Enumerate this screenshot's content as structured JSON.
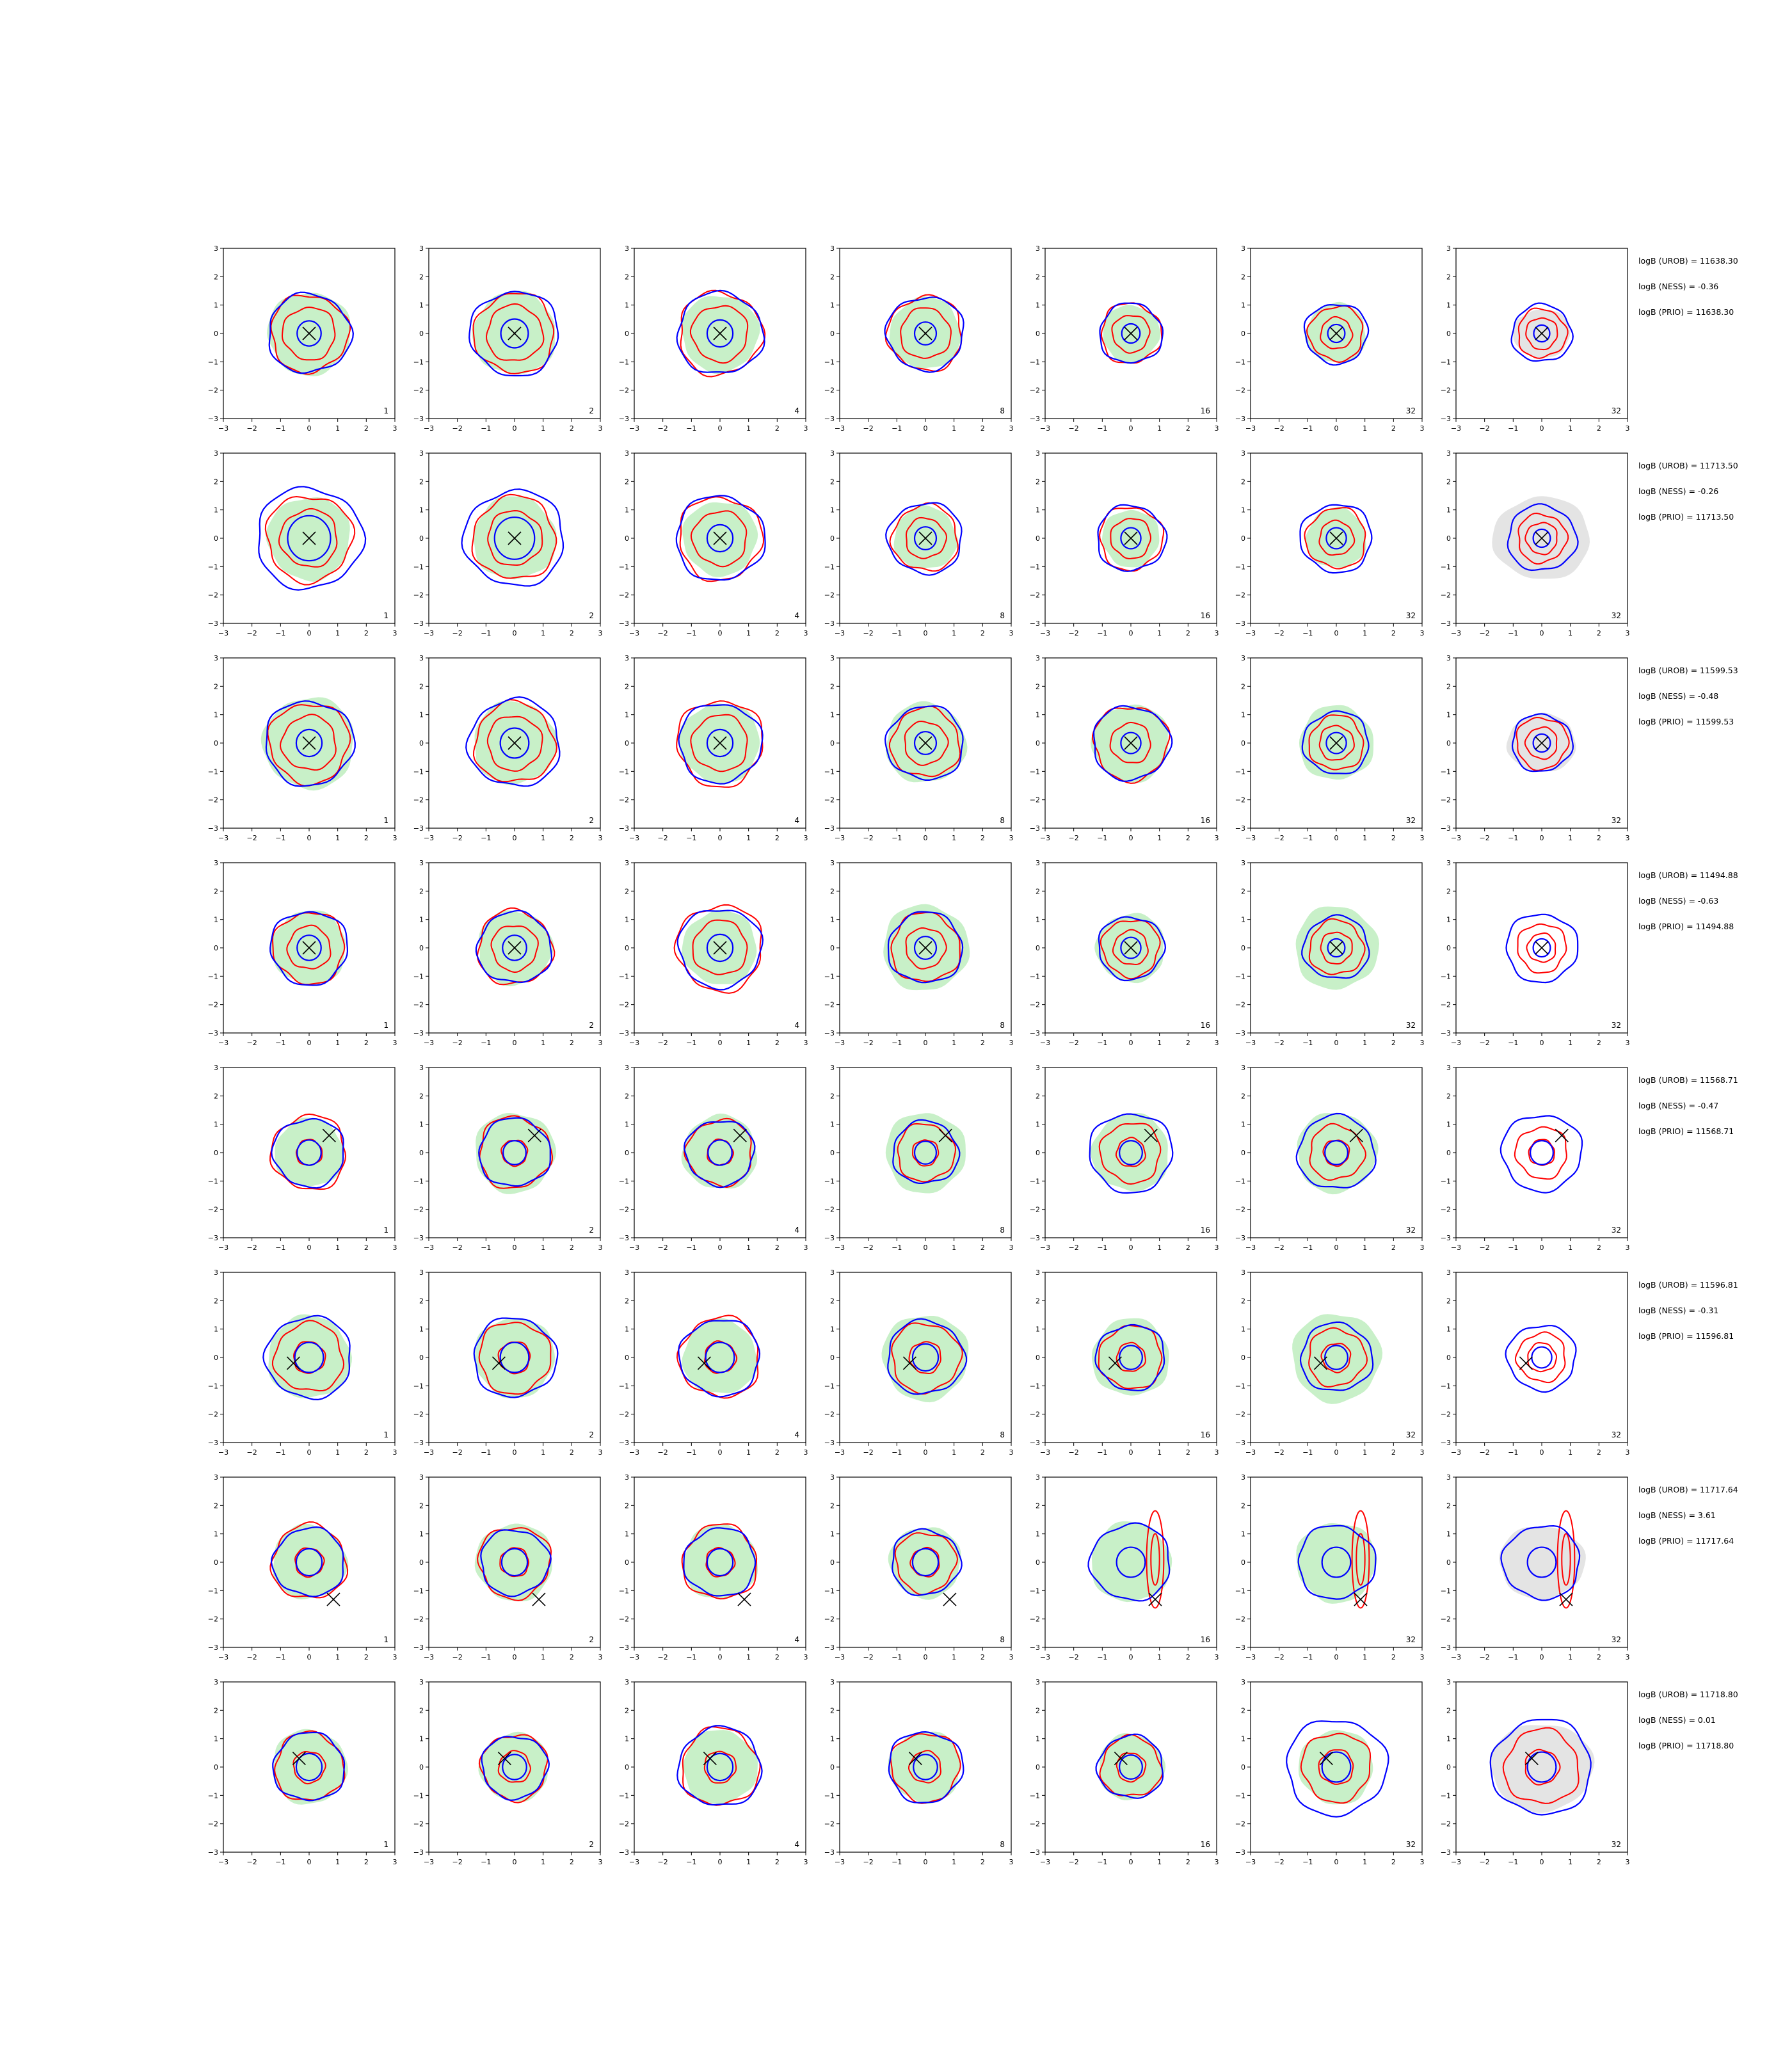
{
  "panel_columns": [
    "1",
    "2",
    "4",
    "8",
    "16",
    "32",
    "32"
  ],
  "colors": {
    "blue": "#0000ff",
    "red": "#ff0000",
    "fill_green": "#c8f0c8",
    "fill_gray": "#e4e4e4",
    "marker": "#000000"
  },
  "axis": {
    "xlim": [
      -3,
      3
    ],
    "ylim": [
      -3,
      3
    ],
    "xticks": [
      "−3",
      "−2",
      "−1",
      "0",
      "1",
      "2",
      "3"
    ],
    "yticks": [
      "−3",
      "−2",
      "−1",
      "0",
      "1",
      "2",
      "3"
    ]
  },
  "rows": [
    {
      "annotations": [
        "logB (UROB) = 11638.30",
        "logB (NESS) = -0.36",
        "logB (PRIO) = 11638.30"
      ],
      "marker": [
        0,
        0
      ],
      "panels": [
        {
          "blue": [
            1.45,
            0.42
          ],
          "red": [
            1.35,
            0.92
          ],
          "green": 1.45
        },
        {
          "blue": [
            1.55,
            0.48
          ],
          "red": [
            1.4,
            0.98
          ],
          "green": 1.45
        },
        {
          "blue": [
            1.5,
            0.45
          ],
          "red": [
            1.45,
            0.98
          ],
          "green": 1.35
        },
        {
          "blue": [
            1.35,
            0.38
          ],
          "red": [
            1.3,
            0.88
          ],
          "green": 1.25
        },
        {
          "blue": [
            1.1,
            0.32
          ],
          "red": [
            1.05,
            0.65
          ],
          "green": 1.0
        },
        {
          "blue": [
            1.1,
            0.3
          ],
          "red": [
            0.95,
            0.55
          ],
          "green": 1.05
        },
        {
          "blue": [
            1.05,
            0.28
          ],
          "red": [
            0.85,
            0.55
          ],
          "gray": 1.0
        }
      ]
    },
    {
      "annotations": [
        "logB (UROB) = 11713.50",
        "logB (NESS) = -0.26",
        "logB (PRIO) = 11713.50"
      ],
      "marker": [
        0,
        0
      ],
      "panels": [
        {
          "blue": [
            1.85,
            0.75
          ],
          "red": [
            1.5,
            1.0
          ],
          "green": 1.45
        },
        {
          "blue": [
            1.75,
            0.7
          ],
          "red": [
            1.45,
            0.95
          ],
          "green": 1.45
        },
        {
          "blue": [
            1.55,
            0.45
          ],
          "red": [
            1.45,
            0.95
          ],
          "green": 1.3
        },
        {
          "blue": [
            1.3,
            0.38
          ],
          "red": [
            1.15,
            0.7
          ],
          "green": 1.1
        },
        {
          "blue": [
            1.2,
            0.35
          ],
          "red": [
            1.1,
            0.7
          ],
          "green": 1.0
        },
        {
          "blue": [
            1.25,
            0.35
          ],
          "red": [
            1.05,
            0.6
          ],
          "green": 1.05
        },
        {
          "blue": [
            1.2,
            0.3
          ],
          "red": [
            0.85,
            0.55
          ],
          "gray": 1.7
        }
      ]
    },
    {
      "annotations": [
        "logB (UROB) = 11599.53",
        "logB (NESS) = -0.48",
        "logB (PRIO) = 11599.53"
      ],
      "marker": [
        0,
        0
      ],
      "panels": [
        {
          "blue": [
            1.55,
            0.45
          ],
          "red": [
            1.4,
            0.95
          ],
          "green": 1.6
        },
        {
          "blue": [
            1.6,
            0.5
          ],
          "red": [
            1.4,
            0.95
          ],
          "green": 1.45
        },
        {
          "blue": [
            1.45,
            0.45
          ],
          "red": [
            1.5,
            0.98
          ],
          "green": 1.4
        },
        {
          "blue": [
            1.35,
            0.38
          ],
          "red": [
            1.2,
            0.75
          ],
          "green": 1.4
        },
        {
          "blue": [
            1.35,
            0.35
          ],
          "red": [
            1.3,
            0.7
          ],
          "green": 1.35
        },
        {
          "blue": [
            1.15,
            0.35
          ],
          "red": [
            0.95,
            0.6
          ],
          "green": 1.3
        },
        {
          "blue": [
            1.05,
            0.3
          ],
          "red": [
            0.9,
            0.55
          ],
          "gray": 1.2
        }
      ]
    },
    {
      "annotations": [
        "logB (UROB) = 11494.88",
        "logB (NESS) = -0.63",
        "logB (PRIO) = 11494.88"
      ],
      "marker": [
        0,
        0
      ],
      "panels": [
        {
          "blue": [
            1.35,
            0.42
          ],
          "red": [
            1.25,
            0.75
          ],
          "green": 1.3
        },
        {
          "blue": [
            1.3,
            0.42
          ],
          "red": [
            1.3,
            0.8
          ],
          "green": 1.3
        },
        {
          "blue": [
            1.45,
            0.45
          ],
          "red": [
            1.5,
            0.95
          ],
          "green": 1.3
        },
        {
          "blue": [
            1.3,
            0.38
          ],
          "red": [
            1.2,
            0.7
          ],
          "green": 1.5
        },
        {
          "blue": [
            1.15,
            0.35
          ],
          "red": [
            1.0,
            0.6
          ],
          "green": 1.2
        },
        {
          "blue": [
            1.15,
            0.3
          ],
          "red": [
            0.95,
            0.55
          ],
          "green": 1.45
        },
        {
          "blue": [
            1.25,
            0.3
          ],
          "red": [
            0.85,
            0.5
          ],
          "gray": 0
        }
      ]
    },
    {
      "annotations": [
        "logB (UROB) = 11568.71",
        "logB (NESS) = -0.47",
        "logB (PRIO) = 11568.71"
      ],
      "marker": [
        0.7,
        0.6
      ],
      "panels": [
        {
          "blue": [
            1.25,
            0.42
          ],
          "red": [
            1.3,
            0.45
          ],
          "green": 1.2
        },
        {
          "blue": [
            1.25,
            0.4
          ],
          "red": [
            1.25,
            0.45
          ],
          "green": 1.4
        },
        {
          "blue": [
            1.2,
            0.42
          ],
          "red": [
            1.15,
            0.45
          ],
          "green": 1.3
        },
        {
          "blue": [
            1.15,
            0.38
          ],
          "red": [
            1.0,
            0.45
          ],
          "green": 1.4
        },
        {
          "blue": [
            1.45,
            0.4
          ],
          "red": [
            1.05,
            0.5
          ],
          "green": 1.35
        },
        {
          "blue": [
            1.35,
            0.4
          ],
          "red": [
            0.95,
            0.45
          ],
          "green": 1.4
        },
        {
          "blue": [
            1.4,
            0.4
          ],
          "red": [
            0.9,
            0.45
          ],
          "gray": 0
        }
      ]
    },
    {
      "annotations": [
        "logB (UROB) = 11596.81",
        "logB (NESS) = -0.31",
        "logB (PRIO) = 11596.81"
      ],
      "marker": [
        -0.55,
        -0.2
      ],
      "panels": [
        {
          "blue": [
            1.5,
            0.5
          ],
          "red": [
            1.2,
            0.55
          ],
          "green": 1.45
        },
        {
          "blue": [
            1.45,
            0.5
          ],
          "red": [
            1.25,
            0.55
          ],
          "green": 1.4
        },
        {
          "blue": [
            1.4,
            0.5
          ],
          "red": [
            1.4,
            0.55
          ],
          "green": 1.3
        },
        {
          "blue": [
            1.35,
            0.45
          ],
          "red": [
            1.2,
            0.55
          ],
          "green": 1.5
        },
        {
          "blue": [
            1.2,
            0.4
          ],
          "red": [
            1.1,
            0.5
          ],
          "green": 1.35
        },
        {
          "blue": [
            1.25,
            0.4
          ],
          "red": [
            1.0,
            0.5
          ],
          "green": 1.55
        },
        {
          "blue": [
            1.2,
            0.35
          ],
          "red": [
            0.85,
            0.5
          ],
          "gray": 0
        }
      ]
    },
    {
      "annotations": [
        "logB (UROB) = 11717.64",
        "logB (NESS) = 3.61",
        "logB (PRIO) = 11717.64"
      ],
      "marker": [
        0.85,
        -1.3
      ],
      "panels": [
        {
          "blue": [
            1.25,
            0.45
          ],
          "red": [
            1.3,
            0.5
          ],
          "green": 1.3
        },
        {
          "blue": [
            1.2,
            0.45
          ],
          "red": [
            1.25,
            0.5
          ],
          "green": 1.35
        },
        {
          "blue": [
            1.25,
            0.45
          ],
          "red": [
            1.3,
            0.5
          ],
          "green": 1.3
        },
        {
          "blue": [
            1.2,
            0.45
          ],
          "red": [
            1.05,
            0.5
          ],
          "green": 1.25
        },
        {
          "blue": [
            1.4,
            0.5
          ],
          "red": [
            0,
            0
          ],
          "green": 1.4
        },
        {
          "blue": [
            1.35,
            0.5
          ],
          "red": [
            0,
            0
          ],
          "green": 1.4
        },
        {
          "blue": [
            1.35,
            0.5
          ],
          "red": [
            0,
            0
          ],
          "gray": 1.5
        }
      ]
    },
    {
      "annotations": [
        "logB (UROB) = 11718.80",
        "logB (NESS) = 0.01",
        "logB (PRIO) = 11718.80"
      ],
      "marker": [
        -0.35,
        0.3
      ],
      "panels": [
        {
          "blue": [
            1.25,
            0.45
          ],
          "red": [
            1.2,
            0.55
          ],
          "green": 1.3
        },
        {
          "blue": [
            1.15,
            0.42
          ],
          "red": [
            1.15,
            0.55
          ],
          "green": 1.2
        },
        {
          "blue": [
            1.45,
            0.45
          ],
          "red": [
            1.35,
            0.55
          ],
          "green": 1.3
        },
        {
          "blue": [
            1.3,
            0.42
          ],
          "red": [
            1.2,
            0.55
          ],
          "green": 1.25
        },
        {
          "blue": [
            1.15,
            0.4
          ],
          "red": [
            1.05,
            0.5
          ],
          "green": 1.15
        },
        {
          "blue": [
            1.75,
            0.5
          ],
          "red": [
            1.2,
            0.6
          ],
          "green": 1.3
        },
        {
          "blue": [
            1.75,
            0.5
          ],
          "red": [
            1.3,
            0.6
          ],
          "gray": 1.8
        }
      ]
    }
  ]
}
